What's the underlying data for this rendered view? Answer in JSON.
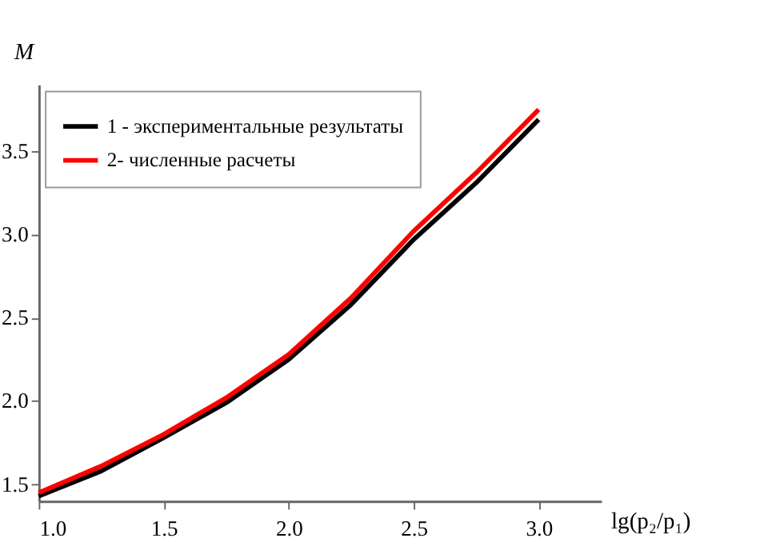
{
  "chart_data": {
    "type": "line",
    "xlabel": "lg(p₂/p₁)",
    "ylabel": "M",
    "x": [
      1.0,
      1.25,
      1.5,
      1.75,
      2.0,
      2.25,
      2.5,
      2.75,
      3.0
    ],
    "series": [
      {
        "name": "1 - экспериментальные результаты",
        "color": "#000000",
        "values": [
          1.43,
          1.58,
          1.78,
          1.99,
          2.25,
          2.58,
          2.97,
          3.31,
          3.69
        ]
      },
      {
        "name": "2- численные расчеты",
        "color": "#ff0000",
        "values": [
          1.45,
          1.61,
          1.8,
          2.02,
          2.28,
          2.62,
          3.02,
          3.37,
          3.75
        ]
      }
    ],
    "xlim": [
      1.0,
      3.25
    ],
    "ylim": [
      1.4,
      3.9
    ],
    "xticks": [
      {
        "value": 1,
        "label": "1.0"
      },
      1.5,
      {
        "value": 2,
        "label": "2.0"
      },
      2.5,
      {
        "value": 3,
        "label": "3.0"
      }
    ],
    "yticks": [
      1.5,
      {
        "value": 2,
        "label": "2.0"
      },
      2.5,
      {
        "value": 3,
        "label": "3.0"
      },
      3.5
    ],
    "grid": false,
    "legend": "top left",
    "marker": "none",
    "line_style": "solid"
  }
}
